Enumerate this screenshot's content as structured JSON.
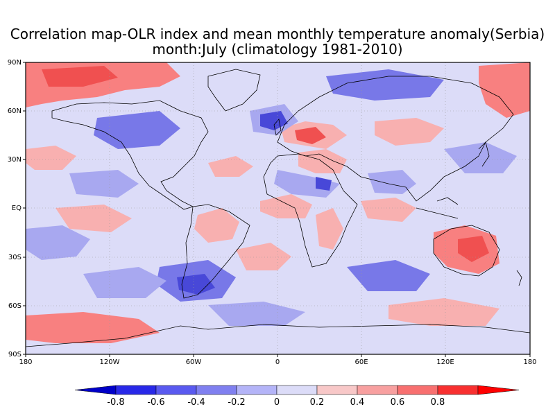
{
  "title_line1": "Correlation map-OLR index and mean monthly temperature anomaly(Serbia)",
  "title_line2": "month:July (climatology 1981-2010)",
  "lat_labels": [
    "90N",
    "60N",
    "30N",
    "EQ",
    "30S",
    "60S",
    "90S"
  ],
  "lon_labels": [
    "180",
    "120W",
    "60W",
    "0",
    "60E",
    "120E",
    "180"
  ],
  "colorbar": {
    "labels": [
      "-0.8",
      "-0.6",
      "-0.4",
      "-0.2",
      "0",
      "0.2",
      "0.4",
      "0.6",
      "0.8"
    ],
    "colors": [
      "#0000c8",
      "#2828e8",
      "#5a5af0",
      "#8080f0",
      "#b4b4f8",
      "#dcdcf8",
      "#f8c8c8",
      "#f8a0a0",
      "#f87070",
      "#f83030",
      "#ff0000"
    ]
  },
  "map_colors": {
    "neutral": "#dcdcf8",
    "pos_weak": "#f8b0b0",
    "pos_mid": "#f88080",
    "pos_strong": "#f05050",
    "neg_weak": "#a8a8f0",
    "neg_mid": "#7878e8",
    "neg_strong": "#4848d8"
  }
}
